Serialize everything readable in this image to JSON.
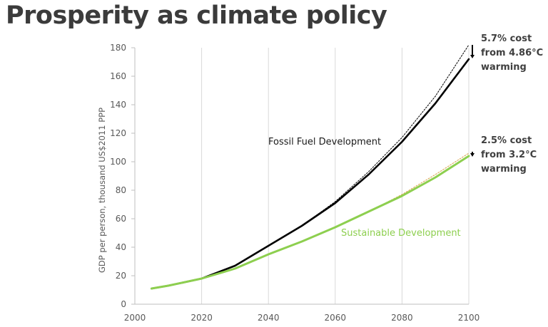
{
  "title": "Prosperity as climate policy",
  "colors": {
    "fossil": "#000000",
    "sustainable": "#8dcf4f",
    "grid": "#d9d9d9",
    "axis": "#bfbfbf",
    "counterfactual_fossil": "#000000",
    "counterfactual_sustainable": "#d8a34a"
  },
  "chart_data": {
    "type": "line",
    "title": "",
    "xlabel": "",
    "ylabel": "GDP per person, thousand US$2011 PPP",
    "xlim": [
      2000,
      2100
    ],
    "ylim": [
      0,
      180
    ],
    "xticks": [
      2000,
      2020,
      2040,
      2060,
      2080,
      2100
    ],
    "yticks": [
      0,
      20,
      40,
      60,
      80,
      100,
      120,
      140,
      160,
      180
    ],
    "grid": "vertical",
    "legend": "none",
    "series": [
      {
        "name": "Fossil Fuel Development",
        "style": "solid",
        "color": "#000000",
        "x": [
          2005,
          2010,
          2020,
          2030,
          2040,
          2050,
          2060,
          2070,
          2080,
          2090,
          2100
        ],
        "y": [
          11,
          13,
          18,
          27,
          41,
          55,
          71,
          91,
          114,
          141,
          172
        ]
      },
      {
        "name": "Sustainable Development",
        "style": "solid",
        "color": "#8dcf4f",
        "x": [
          2005,
          2010,
          2020,
          2030,
          2040,
          2050,
          2060,
          2070,
          2080,
          2090,
          2100
        ],
        "y": [
          11,
          13,
          18,
          25,
          35,
          44,
          54,
          65,
          76,
          89,
          104
        ]
      },
      {
        "name": "",
        "style": "dotted",
        "color": "#000000",
        "x": [
          2020,
          2030,
          2040,
          2050,
          2060,
          2070,
          2080,
          2090,
          2100
        ],
        "y": [
          18,
          27,
          41,
          55,
          72,
          93,
          117,
          146,
          182
        ]
      },
      {
        "name": "",
        "style": "dotted",
        "color": "#d8a34a",
        "x": [
          2020,
          2030,
          2040,
          2050,
          2060,
          2070,
          2080,
          2090,
          2100
        ],
        "y": [
          18,
          25,
          35,
          44,
          54,
          65,
          77,
          91,
          106
        ]
      }
    ],
    "annotations": [
      {
        "lines": [
          "5.7% cost",
          "from 4.86°C",
          "warming"
        ],
        "arrow_x": 2100,
        "arrow_from": 182,
        "arrow_to": 173
      },
      {
        "lines": [
          "2.5% cost",
          "from 3.2°C",
          "warming"
        ],
        "arrow_x": 2100,
        "arrow_from": 107,
        "arrow_to": 104
      }
    ]
  }
}
